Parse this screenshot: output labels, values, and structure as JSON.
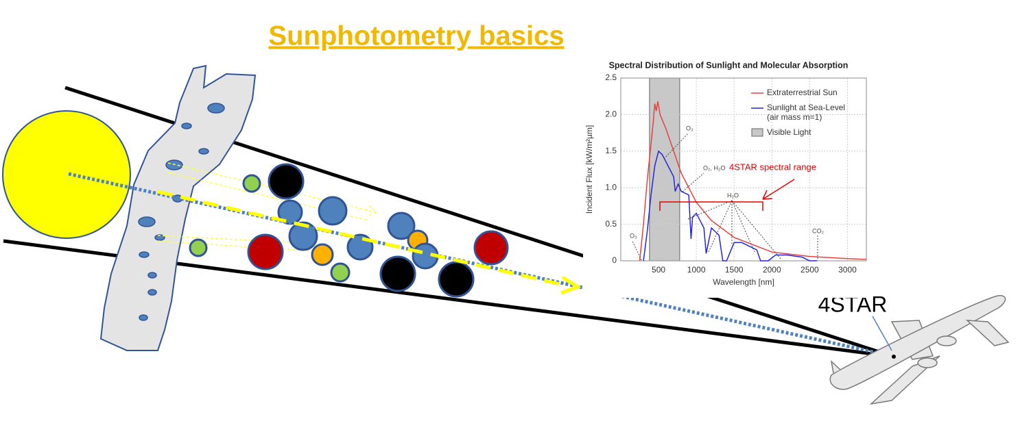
{
  "title": "Sunphotometry basics",
  "instrument_label": "4STAR",
  "range_annotation": "4STAR spectral range",
  "chart_data": {
    "type": "line",
    "title": "Spectral Distribution of Sunlight and Molecular Absorption",
    "x_label": "Wavelength [nm]",
    "y_label": "Incident Flux [kW/m²µm]",
    "xlim": [
      0,
      3250
    ],
    "ylim": [
      0,
      2.5
    ],
    "xticks": [
      500,
      1000,
      1500,
      2000,
      2500,
      3000
    ],
    "yticks": [
      0,
      0.5,
      {
        "value": 1,
        "label": "1.0"
      },
      1.5,
      {
        "value": 2,
        "label": "2.0"
      },
      2.5
    ],
    "grid": true,
    "legend": "upper right",
    "shaded_region": {
      "label": "Visible Light",
      "range": [
        380,
        780
      ],
      "color": "#c8c8c8"
    },
    "annotations": [
      "O₃",
      "O₂, H₂O",
      "H₂O",
      "CO₂",
      "O₃"
    ],
    "series": [
      {
        "name": [
          "Extraterrestrial Sun"
        ],
        "color": "#e8403a",
        "x": [
          250,
          300,
          350,
          400,
          430,
          450,
          470,
          490,
          520,
          560,
          600,
          700,
          800,
          1000,
          1200,
          1500,
          2000,
          2500,
          3000,
          3250
        ],
        "values": [
          0,
          0.5,
          1.1,
          1.6,
          1.9,
          2.15,
          2.05,
          2.18,
          2.0,
          1.9,
          1.8,
          1.5,
          1.2,
          0.8,
          0.55,
          0.32,
          0.12,
          0.06,
          0.03,
          0.02
        ]
      },
      {
        "name": [
          "Sunlight at Sea-Level",
          "(air mass m=1)"
        ],
        "color": "#2424e0",
        "x": [
          300,
          350,
          400,
          450,
          500,
          550,
          600,
          650,
          700,
          720,
          760,
          800,
          900,
          930,
          950,
          1000,
          1100,
          1130,
          1200,
          1300,
          1350,
          1400,
          1500,
          1600,
          1800,
          1850,
          1950,
          2050,
          2200,
          2400,
          2500,
          2600
        ],
        "values": [
          0,
          0.4,
          0.9,
          1.3,
          1.5,
          1.45,
          1.35,
          1.25,
          1.15,
          0.95,
          1.05,
          0.95,
          0.9,
          0.3,
          0.6,
          0.65,
          0.45,
          0.1,
          0.45,
          0.35,
          0,
          0,
          0.25,
          0.25,
          0.15,
          0,
          0,
          0.08,
          0.08,
          0.05,
          0,
          0
        ]
      }
    ]
  }
}
